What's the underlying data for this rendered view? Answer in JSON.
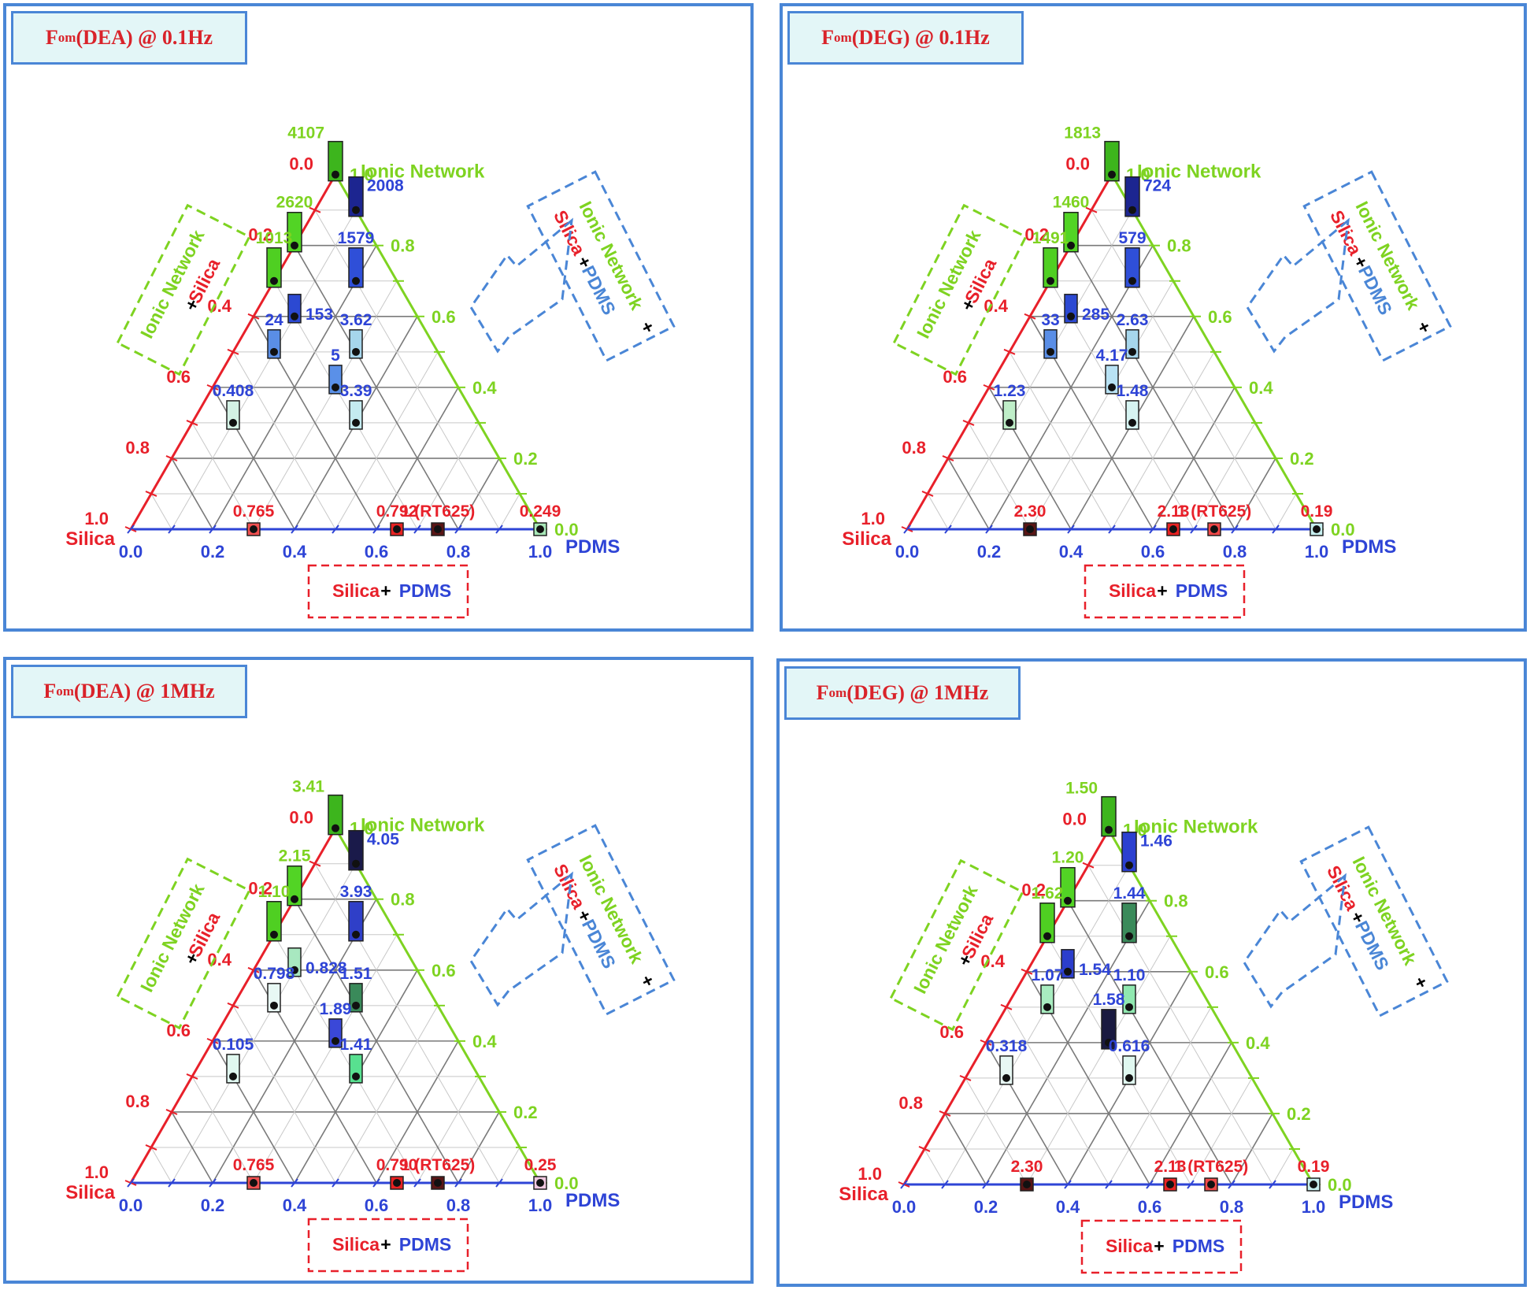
{
  "labels": {
    "vertex_top": "Ionic Network",
    "vertex_left": "Silica",
    "vertex_right": "PDMS",
    "left_ticks": [
      "0.0",
      "0.2",
      "0.4",
      "0.6",
      "0.8",
      "1.0"
    ],
    "right_ticks": [
      "1.0",
      "0.8",
      "0.6",
      "0.4",
      "0.2",
      "0.0"
    ],
    "bottom_ticks": [
      "0.0",
      "0.2",
      "0.4",
      "0.6",
      "0.8",
      "1.0"
    ],
    "box_left": {
      "a": "Ionic Network",
      "plus": "+",
      "b": "Silica"
    },
    "box_right": {
      "a": "Silica",
      "plus": "+",
      "b": "PDMS",
      "c": "Ionic Network",
      "plus2": "+"
    },
    "box_bottom": {
      "a": "Silica",
      "plus": "+",
      "b": "PDMS"
    }
  },
  "colors": {
    "silica": "#e8202a",
    "ionic": "#7ed321",
    "pdms": "#2e44d6",
    "grid": "#808080",
    "frame": "#4a86d6"
  },
  "chart_data": [
    {
      "type": "scatter",
      "subtype": "ternary",
      "title": {
        "prefix": "F",
        "sub": "om",
        "rest": "(DEA) @ 0.1Hz"
      },
      "axes": [
        "Ionic Network",
        "Silica",
        "PDMS"
      ],
      "points": [
        {
          "ionic": 1.0,
          "silica": 0.0,
          "pdms": 0.0,
          "label": "4107",
          "label_color": "#7ed321",
          "color": "#3db51d"
        },
        {
          "ionic": 0.9,
          "silica": 0.0,
          "pdms": 0.1,
          "label": "2008",
          "label_color": "#2e44d6",
          "color": "#1c2590"
        },
        {
          "ionic": 0.8,
          "silica": 0.2,
          "pdms": 0.0,
          "label": "2620",
          "label_color": "#7ed321",
          "color": "#52d425"
        },
        {
          "ionic": 0.7,
          "silica": 0.1,
          "pdms": 0.2,
          "label": "1579",
          "label_color": "#2e44d6",
          "color": "#2f4fd8"
        },
        {
          "ionic": 0.7,
          "silica": 0.3,
          "pdms": 0.0,
          "label": "1013",
          "label_color": "#7ed321",
          "color": "#4fcf22"
        },
        {
          "ionic": 0.6,
          "silica": 0.3,
          "pdms": 0.1,
          "label": "153",
          "label_color": "#2e44d6",
          "color": "#2c49d2"
        },
        {
          "ionic": 0.5,
          "silica": 0.4,
          "pdms": 0.1,
          "label": "24",
          "label_color": "#2e44d6",
          "color": "#5a8ee6"
        },
        {
          "ionic": 0.5,
          "silica": 0.2,
          "pdms": 0.3,
          "label": "3.62",
          "label_color": "#2e44d6",
          "color": "#a6d6ec"
        },
        {
          "ionic": 0.4,
          "silica": 0.3,
          "pdms": 0.3,
          "label": "5",
          "label_color": "#2e44d6",
          "color": "#5a90e8"
        },
        {
          "ionic": 0.3,
          "silica": 0.6,
          "pdms": 0.1,
          "label": "0.408",
          "label_color": "#2e44d6",
          "color": "#d3f1e4"
        },
        {
          "ionic": 0.3,
          "silica": 0.3,
          "pdms": 0.4,
          "label": "3.39",
          "label_color": "#2e44d6",
          "color": "#c4ebf0"
        },
        {
          "ionic": 0.0,
          "silica": 0.7,
          "pdms": 0.3,
          "label": "0.765",
          "label_color": "#e8202a",
          "color": "#f05050"
        },
        {
          "ionic": 0.0,
          "silica": 0.35,
          "pdms": 0.65,
          "label": "0.792",
          "label_color": "#e8202a",
          "color": "#e82222"
        },
        {
          "ionic": 0.0,
          "silica": 0.25,
          "pdms": 0.75,
          "label": "1 (RT625)",
          "label_color": "#e8202a",
          "color": "#5a1515"
        },
        {
          "ionic": 0.0,
          "silica": 0.0,
          "pdms": 1.0,
          "label": "0.249",
          "label_color": "#e8202a",
          "color": "#a8e8b8"
        }
      ]
    },
    {
      "type": "scatter",
      "subtype": "ternary",
      "title": {
        "prefix": "F",
        "sub": "om",
        "rest": "(DEG) @ 0.1Hz"
      },
      "axes": [
        "Ionic Network",
        "Silica",
        "PDMS"
      ],
      "points": [
        {
          "ionic": 1.0,
          "silica": 0.0,
          "pdms": 0.0,
          "label": "1813",
          "label_color": "#7ed321",
          "color": "#3db51d"
        },
        {
          "ionic": 0.9,
          "silica": 0.0,
          "pdms": 0.1,
          "label": "724",
          "label_color": "#2e44d6",
          "color": "#1c2590"
        },
        {
          "ionic": 0.8,
          "silica": 0.2,
          "pdms": 0.0,
          "label": "1460",
          "label_color": "#7ed321",
          "color": "#52d425"
        },
        {
          "ionic": 0.7,
          "silica": 0.1,
          "pdms": 0.2,
          "label": "579",
          "label_color": "#2e44d6",
          "color": "#2f4fd8"
        },
        {
          "ionic": 0.7,
          "silica": 0.3,
          "pdms": 0.0,
          "label": "1491",
          "label_color": "#7ed321",
          "color": "#4fcf22"
        },
        {
          "ionic": 0.6,
          "silica": 0.3,
          "pdms": 0.1,
          "label": "285",
          "label_color": "#2e44d6",
          "color": "#2c49d2"
        },
        {
          "ionic": 0.5,
          "silica": 0.4,
          "pdms": 0.1,
          "label": "33",
          "label_color": "#2e44d6",
          "color": "#5a8ee6"
        },
        {
          "ionic": 0.5,
          "silica": 0.2,
          "pdms": 0.3,
          "label": "2.63",
          "label_color": "#2e44d6",
          "color": "#a6d6ec"
        },
        {
          "ionic": 0.4,
          "silica": 0.3,
          "pdms": 0.3,
          "label": "4.17",
          "label_color": "#2e44d6",
          "color": "#b8e2f4"
        },
        {
          "ionic": 0.3,
          "silica": 0.6,
          "pdms": 0.1,
          "label": "1.23",
          "label_color": "#2e44d6",
          "color": "#bfeec8"
        },
        {
          "ionic": 0.3,
          "silica": 0.3,
          "pdms": 0.4,
          "label": "1.48",
          "label_color": "#2e44d6",
          "color": "#d6f4f2"
        },
        {
          "ionic": 0.0,
          "silica": 0.7,
          "pdms": 0.3,
          "label": "2.30",
          "label_color": "#e8202a",
          "color": "#5a1515"
        },
        {
          "ionic": 0.0,
          "silica": 0.35,
          "pdms": 0.65,
          "label": "2.13",
          "label_color": "#e8202a",
          "color": "#e82222"
        },
        {
          "ionic": 0.0,
          "silica": 0.25,
          "pdms": 0.75,
          "label": "1 (RT625)",
          "label_color": "#e8202a",
          "color": "#f04848"
        },
        {
          "ionic": 0.0,
          "silica": 0.0,
          "pdms": 1.0,
          "label": "0.19",
          "label_color": "#e8202a",
          "color": "#c8f0f0"
        }
      ]
    },
    {
      "type": "scatter",
      "subtype": "ternary",
      "title": {
        "prefix": "F",
        "sub": "om",
        "rest": "(DEA) @ 1MHz"
      },
      "axes": [
        "Ionic Network",
        "Silica",
        "PDMS"
      ],
      "points": [
        {
          "ionic": 1.0,
          "silica": 0.0,
          "pdms": 0.0,
          "label": "3.41",
          "label_color": "#7ed321",
          "color": "#3db51d"
        },
        {
          "ionic": 0.9,
          "silica": 0.0,
          "pdms": 0.1,
          "label": "4.05",
          "label_color": "#2e44d6",
          "color": "#1a1a4a"
        },
        {
          "ionic": 0.8,
          "silica": 0.2,
          "pdms": 0.0,
          "label": "2.15",
          "label_color": "#7ed321",
          "color": "#52d425"
        },
        {
          "ionic": 0.7,
          "silica": 0.1,
          "pdms": 0.2,
          "label": "3.93",
          "label_color": "#2e44d6",
          "color": "#2f3fc8"
        },
        {
          "ionic": 0.7,
          "silica": 0.3,
          "pdms": 0.0,
          "label": "1.10",
          "label_color": "#7ed321",
          "color": "#4fcf22"
        },
        {
          "ionic": 0.6,
          "silica": 0.3,
          "pdms": 0.1,
          "label": "0.828",
          "label_color": "#2e44d6",
          "color": "#a8e8c0"
        },
        {
          "ionic": 0.5,
          "silica": 0.4,
          "pdms": 0.1,
          "label": "0.798",
          "label_color": "#2e44d6",
          "color": "#e8f8f4"
        },
        {
          "ionic": 0.5,
          "silica": 0.2,
          "pdms": 0.3,
          "label": "1.51",
          "label_color": "#2e44d6",
          "color": "#3a8a5a"
        },
        {
          "ionic": 0.4,
          "silica": 0.3,
          "pdms": 0.3,
          "label": "1.89",
          "label_color": "#2e44d6",
          "color": "#3a48d8"
        },
        {
          "ionic": 0.3,
          "silica": 0.6,
          "pdms": 0.1,
          "label": "0.105",
          "label_color": "#2e44d6",
          "color": "#e0f8f0"
        },
        {
          "ionic": 0.3,
          "silica": 0.3,
          "pdms": 0.4,
          "label": "1.41",
          "label_color": "#2e44d6",
          "color": "#58e090"
        },
        {
          "ionic": 0.0,
          "silica": 0.7,
          "pdms": 0.3,
          "label": "0.765",
          "label_color": "#e8202a",
          "color": "#f05050"
        },
        {
          "ionic": 0.0,
          "silica": 0.35,
          "pdms": 0.65,
          "label": "0.790",
          "label_color": "#e8202a",
          "color": "#e82222"
        },
        {
          "ionic": 0.0,
          "silica": 0.25,
          "pdms": 0.75,
          "label": "1 (RT625)",
          "label_color": "#e8202a",
          "color": "#5a1515"
        },
        {
          "ionic": 0.0,
          "silica": 0.0,
          "pdms": 1.0,
          "label": "0.25",
          "label_color": "#e8202a",
          "color": "#f0c8e0"
        }
      ]
    },
    {
      "type": "scatter",
      "subtype": "ternary",
      "title": {
        "prefix": "F",
        "sub": "om",
        "rest": "(DEG) @ 1MHz"
      },
      "axes": [
        "Ionic Network",
        "Silica",
        "PDMS"
      ],
      "points": [
        {
          "ionic": 1.0,
          "silica": 0.0,
          "pdms": 0.0,
          "label": "1.50",
          "label_color": "#7ed321",
          "color": "#3db51d"
        },
        {
          "ionic": 0.9,
          "silica": 0.0,
          "pdms": 0.1,
          "label": "1.46",
          "label_color": "#2e44d6",
          "color": "#2c40d0"
        },
        {
          "ionic": 0.8,
          "silica": 0.2,
          "pdms": 0.0,
          "label": "1.20",
          "label_color": "#7ed321",
          "color": "#52d425"
        },
        {
          "ionic": 0.7,
          "silica": 0.1,
          "pdms": 0.2,
          "label": "1.44",
          "label_color": "#2e44d6",
          "color": "#3a8a5a"
        },
        {
          "ionic": 0.7,
          "silica": 0.3,
          "pdms": 0.0,
          "label": "1.62",
          "label_color": "#7ed321",
          "color": "#4fcf22"
        },
        {
          "ionic": 0.6,
          "silica": 0.3,
          "pdms": 0.1,
          "label": "1.54",
          "label_color": "#2e44d6",
          "color": "#2c3ecc"
        },
        {
          "ionic": 0.5,
          "silica": 0.4,
          "pdms": 0.1,
          "label": "1.07",
          "label_color": "#2e44d6",
          "color": "#a8ecc0"
        },
        {
          "ionic": 0.5,
          "silica": 0.2,
          "pdms": 0.3,
          "label": "1.10",
          "label_color": "#2e44d6",
          "color": "#90e8b0"
        },
        {
          "ionic": 0.4,
          "silica": 0.3,
          "pdms": 0.3,
          "label": "1.58",
          "label_color": "#2e44d6",
          "color": "#1a1a40"
        },
        {
          "ionic": 0.3,
          "silica": 0.6,
          "pdms": 0.1,
          "label": "0.318",
          "label_color": "#2e44d6",
          "color": "#e8f8f4"
        },
        {
          "ionic": 0.3,
          "silica": 0.3,
          "pdms": 0.4,
          "label": "0.616",
          "label_color": "#2e44d6",
          "color": "#e0f8f0"
        },
        {
          "ionic": 0.0,
          "silica": 0.7,
          "pdms": 0.3,
          "label": "2.30",
          "label_color": "#e8202a",
          "color": "#5a1515"
        },
        {
          "ionic": 0.0,
          "silica": 0.35,
          "pdms": 0.65,
          "label": "2.13",
          "label_color": "#e8202a",
          "color": "#e82222"
        },
        {
          "ionic": 0.0,
          "silica": 0.25,
          "pdms": 0.75,
          "label": "1 (RT625)",
          "label_color": "#e8202a",
          "color": "#f04848"
        },
        {
          "ionic": 0.0,
          "silica": 0.0,
          "pdms": 1.0,
          "label": "0.19",
          "label_color": "#e8202a",
          "color": "#c8f0f0"
        }
      ]
    }
  ]
}
